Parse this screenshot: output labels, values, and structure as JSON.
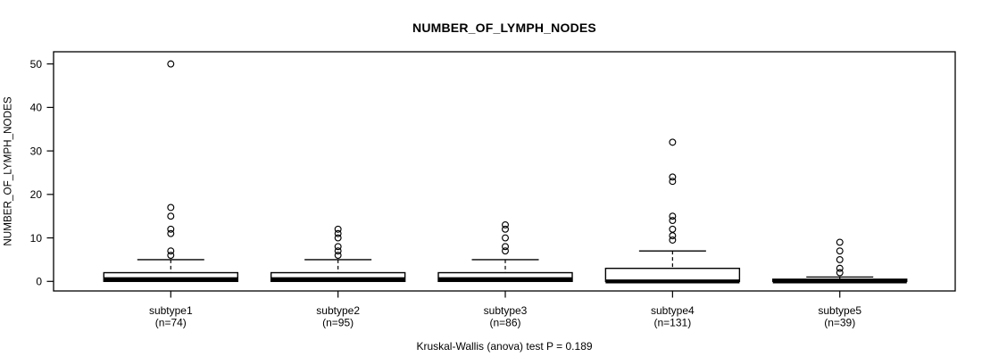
{
  "chart_data": {
    "type": "boxplot",
    "title": "NUMBER_OF_LYMPH_NODES",
    "ylabel": "NUMBER_OF_LYMPH_NODES",
    "caption": "Kruskal-Wallis (anova) test P = 0.189",
    "yticks": [
      0,
      10,
      20,
      30,
      40,
      50
    ],
    "ylim": [
      -2.2,
      52.8
    ],
    "grid": false,
    "legend": "none",
    "categories": [
      "subtype1",
      "subtype2",
      "subtype3",
      "subtype4",
      "subtype5"
    ],
    "groups": [
      {
        "label": "subtype1",
        "n": 74,
        "n_label": "(n=74)",
        "whisker_low": 0,
        "q1": 0,
        "median": 0.5,
        "q3": 2,
        "whisker_high": 5,
        "outliers": [
          6,
          7,
          11,
          12,
          15,
          17,
          50
        ]
      },
      {
        "label": "subtype2",
        "n": 95,
        "n_label": "(n=95)",
        "whisker_low": 0,
        "q1": 0,
        "median": 0.5,
        "q3": 2,
        "whisker_high": 5,
        "outliers": [
          6,
          7,
          8,
          10,
          11,
          12
        ]
      },
      {
        "label": "subtype3",
        "n": 86,
        "n_label": "(n=86)",
        "whisker_low": 0,
        "q1": 0,
        "median": 0.5,
        "q3": 2,
        "whisker_high": 5,
        "outliers": [
          7,
          8,
          10,
          12,
          13
        ]
      },
      {
        "label": "subtype4",
        "n": 131,
        "n_label": "(n=131)",
        "whisker_low": 0,
        "q1": 0,
        "median": 0,
        "q3": 3,
        "whisker_high": 7,
        "outliers": [
          9.5,
          10.5,
          12,
          14,
          15,
          23,
          24,
          32
        ]
      },
      {
        "label": "subtype5",
        "n": 39,
        "n_label": "(n=39)",
        "whisker_low": 0,
        "q1": 0,
        "median": 0,
        "q3": 0.5,
        "whisker_high": 1,
        "outliers": [
          2,
          3,
          5,
          7,
          9
        ]
      }
    ],
    "colors": {
      "stroke": "#000000",
      "box_fill": "#ffffff",
      "background": "#ffffff"
    }
  }
}
